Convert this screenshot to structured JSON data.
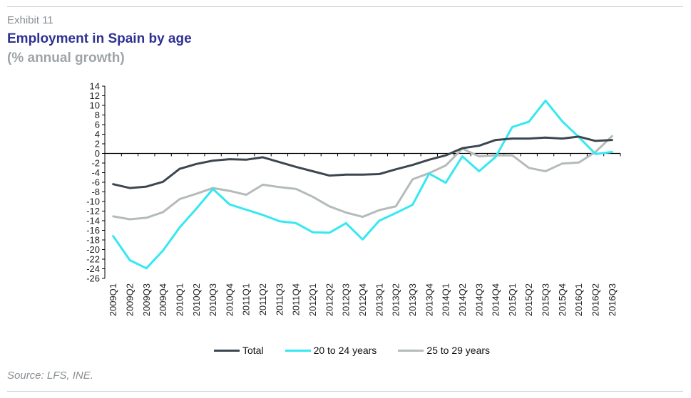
{
  "header": {
    "exhibit": "Exhibit 11",
    "title": "Employment in Spain by age",
    "subtitle": "(% annual growth)"
  },
  "footer": {
    "source": "Source: LFS, INE."
  },
  "colors": {
    "total": "#3b4650",
    "age20_24": "#35e8f2",
    "age25_29": "#b4bbb9",
    "axis": "#000000"
  },
  "chart_data": {
    "type": "line",
    "title": "Employment in Spain by age",
    "ylabel": "",
    "xlabel": "",
    "ylim": [
      -26,
      14
    ],
    "yticks": [
      14,
      12,
      10,
      8,
      6,
      4,
      2,
      0,
      -2,
      -4,
      -6,
      -8,
      -10,
      -12,
      -14,
      -16,
      -18,
      -20,
      -22,
      -24,
      -26
    ],
    "grid": false,
    "legend_position": "bottom",
    "categories": [
      "2009Q1",
      "2009Q2",
      "2009Q3",
      "2009Q4",
      "2010Q1",
      "2010Q2",
      "2010Q3",
      "2010Q4",
      "2011Q1",
      "2011Q2",
      "2011Q3",
      "2011Q4",
      "2012Q1",
      "2012Q2",
      "2012Q3",
      "2012Q4",
      "2013Q1",
      "2013Q2",
      "2013Q3",
      "2013Q4",
      "2014Q1",
      "2014Q2",
      "2014Q3",
      "2014Q4",
      "2015Q1",
      "2015Q2",
      "2015Q3",
      "2015Q4",
      "2016Q1",
      "2016Q2",
      "2016Q3"
    ],
    "series": [
      {
        "name": "Total",
        "color": "#3b4650",
        "values": [
          -6.4,
          -7.2,
          -6.9,
          -5.9,
          -3.2,
          -2.2,
          -1.5,
          -1.2,
          -1.3,
          -0.8,
          -1.8,
          -2.8,
          -3.7,
          -4.6,
          -4.4,
          -4.4,
          -4.3,
          -3.3,
          -2.4,
          -1.3,
          -0.4,
          1.1,
          1.6,
          2.8,
          3.1,
          3.1,
          3.3,
          3.1,
          3.5,
          2.6,
          2.8
        ]
      },
      {
        "name": "20 to 24 years",
        "color": "#35e8f2",
        "values": [
          -17.2,
          -22.2,
          -23.9,
          -20.2,
          -15.4,
          -11.5,
          -7.4,
          -10.6,
          -11.7,
          -12.8,
          -14.1,
          -14.5,
          -16.4,
          -16.5,
          -14.5,
          -17.9,
          -14.0,
          -12.4,
          -10.7,
          -4.2,
          -6.1,
          -0.6,
          -3.7,
          -0.7,
          5.5,
          6.6,
          11.0,
          6.7,
          3.4,
          -0.1,
          0.3
        ]
      },
      {
        "name": "25 to 29 years",
        "color": "#b4bbb9",
        "values": [
          -13.1,
          -13.7,
          -13.4,
          -12.2,
          -9.5,
          -8.4,
          -7.2,
          -7.8,
          -8.6,
          -6.5,
          -7.0,
          -7.4,
          -9.0,
          -11.0,
          -12.3,
          -13.2,
          -11.8,
          -11.0,
          -5.4,
          -4.1,
          -2.5,
          1.0,
          -0.6,
          -0.4,
          -0.4,
          -3.0,
          -3.7,
          -2.1,
          -1.9,
          0.3,
          3.6
        ]
      }
    ]
  }
}
